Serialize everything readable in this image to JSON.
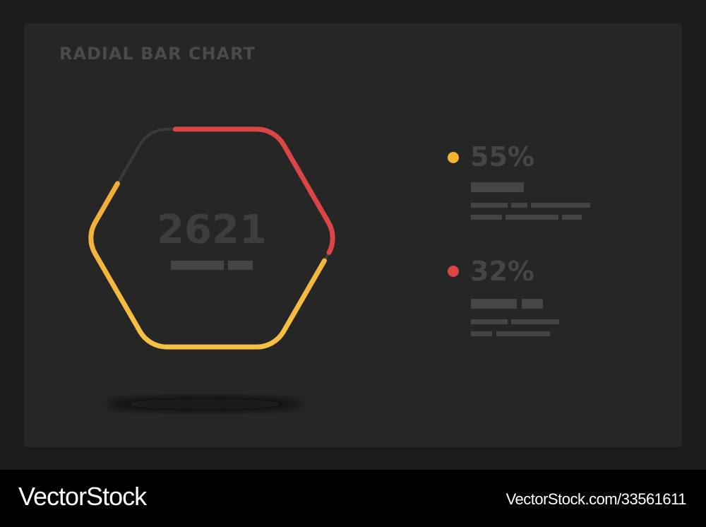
{
  "chart_data": {
    "type": "radial-bar",
    "title": "RADIAL BAR CHART",
    "center_value": "2621",
    "series": [
      {
        "name": "",
        "value": 55,
        "label": "55%",
        "color": "#f1b332"
      },
      {
        "name": "",
        "value": 32,
        "label": "32%",
        "color": "#dc4545"
      }
    ],
    "track_color": "#3a3a3a",
    "legend_placement": "right"
  },
  "footer": {
    "brand": "VectorStock",
    "image_id": "VectorStock.com/33561611"
  }
}
